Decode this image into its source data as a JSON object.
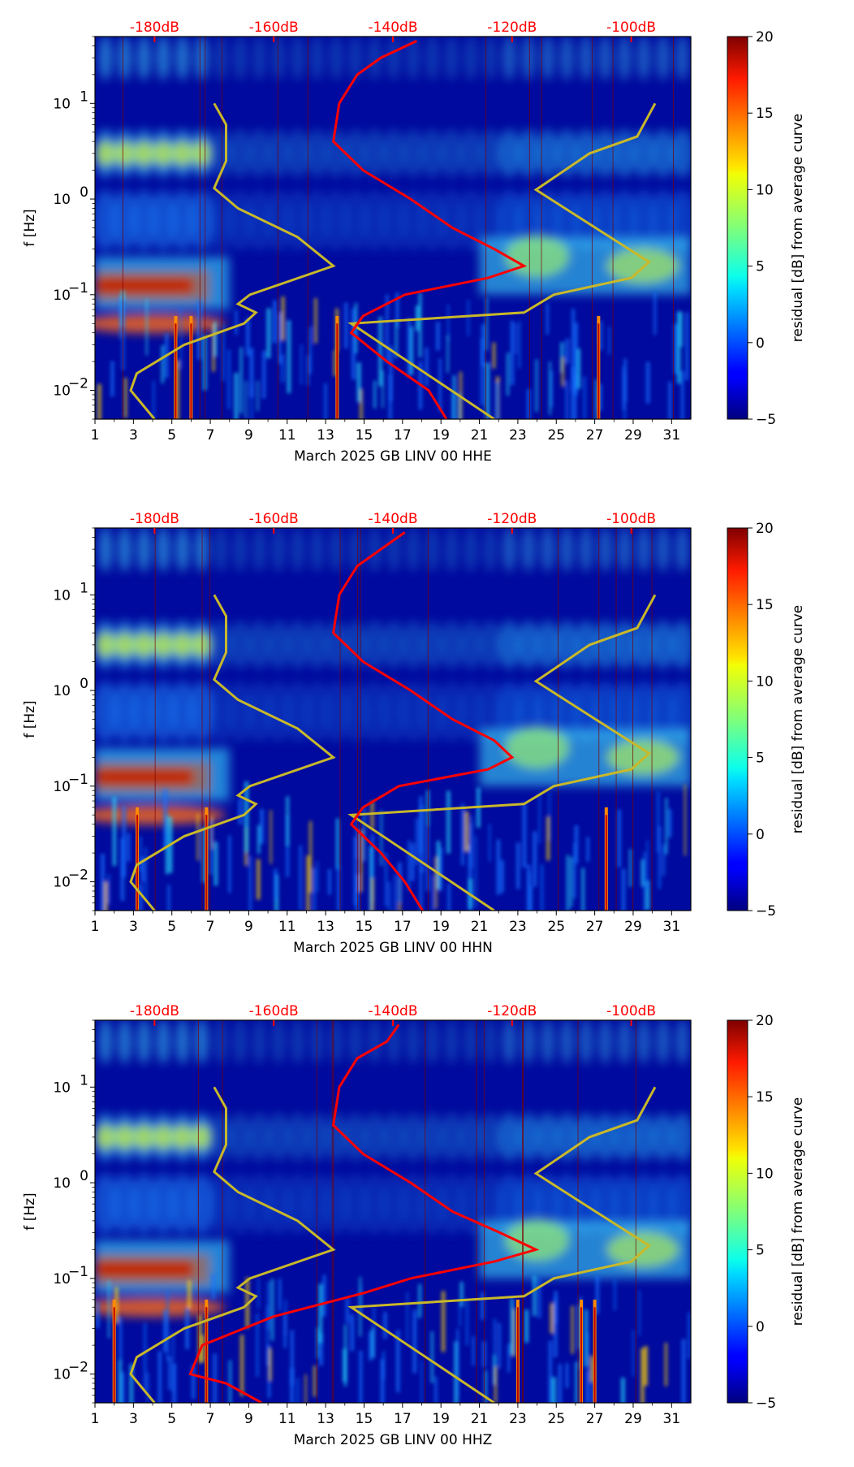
{
  "chart_data": [
    {
      "type": "heatmap",
      "xlabel": "March 2025 GB LINV 00 HHE",
      "ylabel": "f [Hz]",
      "x_ticks": [
        "1",
        "3",
        "5",
        "7",
        "9",
        "11",
        "13",
        "15",
        "17",
        "19",
        "21",
        "23",
        "25",
        "27",
        "29",
        "31"
      ],
      "x_range": [
        1,
        32
      ],
      "y_scale": "log",
      "y_range": [
        0.005,
        50
      ],
      "y_ticks": [
        {
          "base": "10",
          "exp": "−2",
          "value": 0.01
        },
        {
          "base": "10",
          "exp": "−1",
          "value": 0.1
        },
        {
          "base": "10",
          "exp": "0",
          "value": 1
        },
        {
          "base": "10",
          "exp": "1",
          "value": 10
        }
      ],
      "top_axis_labels": [
        "-180dB",
        "-160dB",
        "-140dB",
        "-120dB",
        "-100dB"
      ],
      "colorbar": {
        "label": "residual [dB] from average curve",
        "range": [
          -5,
          20
        ],
        "ticks": [
          "20",
          "15",
          "10",
          "5",
          "0",
          "−5"
        ]
      },
      "colors": {
        "mean_curve": "#ff0000",
        "model_curves": "#c8b82a",
        "label": "#ff0000"
      },
      "curve_x_range": [
        -190,
        -90
      ],
      "mean_curve": [
        [
          0.005,
          -131
        ],
        [
          0.01,
          -134
        ],
        [
          0.02,
          -141
        ],
        [
          0.04,
          -147
        ],
        [
          0.06,
          -145
        ],
        [
          0.1,
          -138
        ],
        [
          0.15,
          -124
        ],
        [
          0.2,
          -118
        ],
        [
          0.3,
          -123
        ],
        [
          0.5,
          -130
        ],
        [
          1,
          -137
        ],
        [
          2,
          -145
        ],
        [
          4,
          -150
        ],
        [
          10,
          -149
        ],
        [
          20,
          -146
        ],
        [
          30,
          -142
        ],
        [
          45,
          -136
        ]
      ],
      "nlnm": [
        [
          0.005,
          -180
        ],
        [
          0.01,
          -184
        ],
        [
          0.015,
          -183
        ],
        [
          0.03,
          -175
        ],
        [
          0.05,
          -165
        ],
        [
          0.065,
          -163
        ],
        [
          0.08,
          -166
        ],
        [
          0.1,
          -164
        ],
        [
          0.2,
          -150
        ],
        [
          0.4,
          -156
        ],
        [
          0.8,
          -166
        ],
        [
          1.3,
          -170
        ],
        [
          2.5,
          -168
        ],
        [
          6,
          -168
        ],
        [
          10,
          -170
        ]
      ],
      "nhnm": [
        [
          0.005,
          -123
        ],
        [
          0.05,
          -147
        ],
        [
          0.065,
          -118
        ],
        [
          0.1,
          -113
        ],
        [
          0.15,
          -100
        ],
        [
          0.22,
          -97
        ],
        [
          0.5,
          -106
        ],
        [
          1.25,
          -116
        ],
        [
          3,
          -107
        ],
        [
          4.5,
          -99
        ],
        [
          10,
          -96
        ]
      ],
      "spikes": [
        5.2,
        6.0,
        13.6,
        27.2
      ]
    },
    {
      "type": "heatmap",
      "xlabel": "March 2025 GB LINV 00 HHN",
      "ylabel": "f [Hz]",
      "x_ticks": [
        "1",
        "3",
        "5",
        "7",
        "9",
        "11",
        "13",
        "15",
        "17",
        "19",
        "21",
        "23",
        "25",
        "27",
        "29",
        "31"
      ],
      "x_range": [
        1,
        32
      ],
      "y_scale": "log",
      "y_range": [
        0.005,
        50
      ],
      "y_ticks": [
        {
          "base": "10",
          "exp": "−2",
          "value": 0.01
        },
        {
          "base": "10",
          "exp": "−1",
          "value": 0.1
        },
        {
          "base": "10",
          "exp": "0",
          "value": 1
        },
        {
          "base": "10",
          "exp": "1",
          "value": 10
        }
      ],
      "top_axis_labels": [
        "-180dB",
        "-160dB",
        "-140dB",
        "-120dB",
        "-100dB"
      ],
      "colorbar": {
        "label": "residual [dB] from average curve",
        "range": [
          -5,
          20
        ],
        "ticks": [
          "20",
          "15",
          "10",
          "5",
          "0",
          "−5"
        ]
      },
      "colors": {
        "mean_curve": "#ff0000",
        "model_curves": "#c8b82a",
        "label": "#ff0000"
      },
      "curve_x_range": [
        -190,
        -90
      ],
      "mean_curve": [
        [
          0.005,
          -135
        ],
        [
          0.01,
          -138
        ],
        [
          0.02,
          -142
        ],
        [
          0.04,
          -147
        ],
        [
          0.06,
          -145
        ],
        [
          0.1,
          -139
        ],
        [
          0.15,
          -124
        ],
        [
          0.2,
          -120
        ],
        [
          0.3,
          -123
        ],
        [
          0.5,
          -130
        ],
        [
          1,
          -137
        ],
        [
          2,
          -145
        ],
        [
          4,
          -150
        ],
        [
          10,
          -149
        ],
        [
          20,
          -146
        ],
        [
          30,
          -142
        ],
        [
          45,
          -138
        ]
      ],
      "nlnm": [
        [
          0.005,
          -180
        ],
        [
          0.01,
          -184
        ],
        [
          0.015,
          -183
        ],
        [
          0.03,
          -175
        ],
        [
          0.05,
          -165
        ],
        [
          0.065,
          -163
        ],
        [
          0.08,
          -166
        ],
        [
          0.1,
          -164
        ],
        [
          0.2,
          -150
        ],
        [
          0.4,
          -156
        ],
        [
          0.8,
          -166
        ],
        [
          1.3,
          -170
        ],
        [
          2.5,
          -168
        ],
        [
          6,
          -168
        ],
        [
          10,
          -170
        ]
      ],
      "nhnm": [
        [
          0.005,
          -123
        ],
        [
          0.05,
          -147
        ],
        [
          0.065,
          -118
        ],
        [
          0.1,
          -113
        ],
        [
          0.15,
          -100
        ],
        [
          0.22,
          -97
        ],
        [
          0.5,
          -106
        ],
        [
          1.25,
          -116
        ],
        [
          3,
          -107
        ],
        [
          4.5,
          -99
        ],
        [
          10,
          -96
        ]
      ],
      "spikes": [
        3.2,
        6.8,
        27.6
      ]
    },
    {
      "type": "heatmap",
      "xlabel": "March 2025 GB LINV 00 HHZ",
      "ylabel": "f [Hz]",
      "x_ticks": [
        "1",
        "3",
        "5",
        "7",
        "9",
        "11",
        "13",
        "15",
        "17",
        "19",
        "21",
        "23",
        "25",
        "27",
        "29",
        "31"
      ],
      "x_range": [
        1,
        32
      ],
      "y_scale": "log",
      "y_range": [
        0.005,
        50
      ],
      "y_ticks": [
        {
          "base": "10",
          "exp": "−2",
          "value": 0.01
        },
        {
          "base": "10",
          "exp": "−1",
          "value": 0.1
        },
        {
          "base": "10",
          "exp": "0",
          "value": 1
        },
        {
          "base": "10",
          "exp": "1",
          "value": 10
        }
      ],
      "top_axis_labels": [
        "-180dB",
        "-160dB",
        "-140dB",
        "-120dB",
        "-100dB"
      ],
      "colorbar": {
        "label": "residual [dB] from average curve",
        "range": [
          -5,
          20
        ],
        "ticks": [
          "20",
          "15",
          "10",
          "5",
          "0",
          "−5"
        ]
      },
      "colors": {
        "mean_curve": "#ff0000",
        "model_curves": "#c8b82a",
        "label": "#ff0000"
      },
      "curve_x_range": [
        -190,
        -90
      ],
      "mean_curve": [
        [
          0.005,
          -162
        ],
        [
          0.008,
          -168
        ],
        [
          0.01,
          -174
        ],
        [
          0.02,
          -172
        ],
        [
          0.04,
          -160
        ],
        [
          0.07,
          -145
        ],
        [
          0.1,
          -137
        ],
        [
          0.15,
          -123
        ],
        [
          0.2,
          -116
        ],
        [
          0.3,
          -122
        ],
        [
          0.5,
          -130
        ],
        [
          1,
          -137
        ],
        [
          2,
          -145
        ],
        [
          4,
          -150
        ],
        [
          10,
          -149
        ],
        [
          20,
          -146
        ],
        [
          30,
          -141
        ],
        [
          45,
          -139
        ]
      ],
      "nlnm": [
        [
          0.005,
          -180
        ],
        [
          0.01,
          -184
        ],
        [
          0.015,
          -183
        ],
        [
          0.03,
          -175
        ],
        [
          0.05,
          -165
        ],
        [
          0.065,
          -163
        ],
        [
          0.08,
          -166
        ],
        [
          0.1,
          -164
        ],
        [
          0.2,
          -150
        ],
        [
          0.4,
          -156
        ],
        [
          0.8,
          -166
        ],
        [
          1.3,
          -170
        ],
        [
          2.5,
          -168
        ],
        [
          6,
          -168
        ],
        [
          10,
          -170
        ]
      ],
      "nhnm": [
        [
          0.005,
          -123
        ],
        [
          0.05,
          -147
        ],
        [
          0.065,
          -118
        ],
        [
          0.1,
          -113
        ],
        [
          0.15,
          -100
        ],
        [
          0.22,
          -97
        ],
        [
          0.5,
          -106
        ],
        [
          1.25,
          -116
        ],
        [
          3,
          -107
        ],
        [
          4.5,
          -99
        ],
        [
          10,
          -96
        ]
      ],
      "spikes": [
        2.0,
        6.8,
        23.0,
        26.3,
        27.0
      ]
    }
  ]
}
